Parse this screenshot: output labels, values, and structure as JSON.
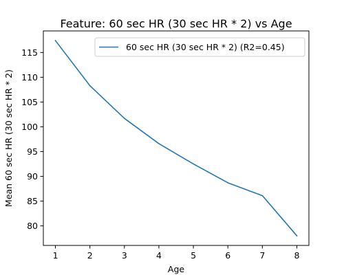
{
  "chart_data": {
    "type": "line",
    "title": "Feature: 60 sec HR (30 sec HR * 2) vs Age",
    "xlabel": "Age",
    "ylabel": "Mean 60 sec HR (30 sec HR * 2)",
    "x": [
      1,
      2,
      3,
      4,
      5,
      6,
      7,
      8
    ],
    "series": [
      {
        "name": "60 sec HR (30 sec HR * 2) (R2=0.45)",
        "values": [
          117.4,
          108.3,
          101.7,
          96.6,
          92.5,
          88.7,
          86.1,
          78.0
        ],
        "color": "#1f77b4"
      }
    ],
    "xlim": [
      0.65,
      8.35
    ],
    "ylim": [
      76.05,
      119.35
    ],
    "xticks": [
      1,
      2,
      3,
      4,
      5,
      6,
      7,
      8
    ],
    "yticks": [
      80,
      85,
      90,
      95,
      100,
      105,
      110,
      115
    ],
    "grid": false,
    "legend": "top-right"
  }
}
